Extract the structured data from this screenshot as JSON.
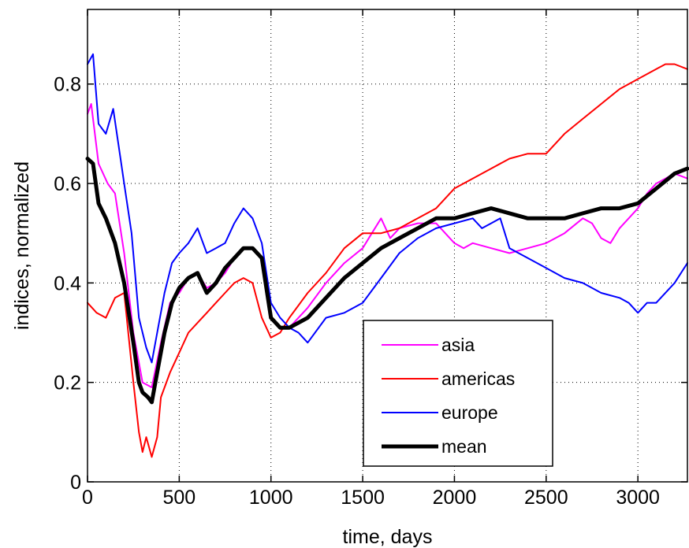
{
  "chart_data": {
    "type": "line",
    "title": "",
    "xlabel": "time, days",
    "ylabel": "indices, normalized",
    "xlim": [
      0,
      3270
    ],
    "ylim": [
      0,
      0.95
    ],
    "xticks": [
      0,
      500,
      1000,
      1500,
      2000,
      2500,
      3000
    ],
    "yticks": [
      0,
      0.2,
      0.4,
      0.6,
      0.8
    ],
    "xtick_labels": [
      "0",
      "500",
      "1000",
      "1500",
      "2000",
      "2500",
      "3000"
    ],
    "ytick_labels": [
      "0",
      "0.2",
      "0.4",
      "0.6",
      "0.8"
    ],
    "grid": true,
    "legend_position": "bottom-right",
    "series": [
      {
        "name": "asia",
        "color": "#ff00ff",
        "width": 2,
        "x": [
          0,
          20,
          60,
          110,
          150,
          200,
          250,
          300,
          350,
          400,
          450,
          500,
          550,
          600,
          650,
          700,
          750,
          800,
          850,
          900,
          950,
          1000,
          1050,
          1100,
          1150,
          1200,
          1300,
          1400,
          1500,
          1550,
          1600,
          1650,
          1700,
          1800,
          1900,
          2000,
          2050,
          2100,
          2200,
          2300,
          2400,
          2500,
          2600,
          2700,
          2750,
          2800,
          2850,
          2900,
          2950,
          3000,
          3050,
          3100,
          3150,
          3200,
          3270
        ],
        "y": [
          0.74,
          0.76,
          0.64,
          0.6,
          0.58,
          0.46,
          0.3,
          0.2,
          0.19,
          0.28,
          0.36,
          0.38,
          0.41,
          0.42,
          0.39,
          0.4,
          0.42,
          0.45,
          0.47,
          0.47,
          0.45,
          0.33,
          0.31,
          0.31,
          0.33,
          0.35,
          0.4,
          0.44,
          0.47,
          0.5,
          0.53,
          0.49,
          0.51,
          0.52,
          0.52,
          0.48,
          0.47,
          0.48,
          0.47,
          0.46,
          0.47,
          0.48,
          0.5,
          0.53,
          0.52,
          0.49,
          0.48,
          0.51,
          0.53,
          0.55,
          0.58,
          0.6,
          0.61,
          0.62,
          0.61
        ]
      },
      {
        "name": "americas",
        "color": "#ff0000",
        "width": 2,
        "x": [
          0,
          50,
          100,
          150,
          200,
          250,
          280,
          300,
          320,
          350,
          380,
          400,
          450,
          500,
          550,
          600,
          650,
          700,
          750,
          800,
          850,
          900,
          950,
          1000,
          1050,
          1100,
          1200,
          1300,
          1400,
          1500,
          1600,
          1700,
          1800,
          1900,
          2000,
          2100,
          2200,
          2300,
          2400,
          2500,
          2600,
          2700,
          2800,
          2900,
          3000,
          3100,
          3150,
          3200,
          3270
        ],
        "y": [
          0.36,
          0.34,
          0.33,
          0.37,
          0.38,
          0.2,
          0.1,
          0.06,
          0.09,
          0.05,
          0.09,
          0.17,
          0.22,
          0.26,
          0.3,
          0.32,
          0.34,
          0.36,
          0.38,
          0.4,
          0.41,
          0.4,
          0.33,
          0.29,
          0.3,
          0.33,
          0.38,
          0.42,
          0.47,
          0.5,
          0.5,
          0.51,
          0.53,
          0.55,
          0.59,
          0.61,
          0.63,
          0.65,
          0.66,
          0.66,
          0.7,
          0.73,
          0.76,
          0.79,
          0.81,
          0.83,
          0.84,
          0.84,
          0.83
        ]
      },
      {
        "name": "europe",
        "color": "#0000ff",
        "width": 2,
        "x": [
          0,
          30,
          60,
          100,
          140,
          180,
          200,
          240,
          280,
          320,
          350,
          380,
          420,
          460,
          500,
          550,
          600,
          650,
          700,
          750,
          800,
          850,
          900,
          950,
          1000,
          1050,
          1100,
          1150,
          1200,
          1300,
          1400,
          1500,
          1600,
          1700,
          1800,
          1900,
          2000,
          2100,
          2150,
          2200,
          2250,
          2300,
          2400,
          2500,
          2600,
          2700,
          2800,
          2900,
          2950,
          3000,
          3050,
          3100,
          3200,
          3270
        ],
        "y": [
          0.84,
          0.86,
          0.72,
          0.7,
          0.75,
          0.65,
          0.6,
          0.5,
          0.33,
          0.27,
          0.24,
          0.3,
          0.38,
          0.44,
          0.46,
          0.48,
          0.51,
          0.46,
          0.47,
          0.48,
          0.52,
          0.55,
          0.53,
          0.48,
          0.36,
          0.33,
          0.31,
          0.3,
          0.28,
          0.33,
          0.34,
          0.36,
          0.41,
          0.46,
          0.49,
          0.51,
          0.52,
          0.53,
          0.51,
          0.52,
          0.53,
          0.47,
          0.45,
          0.43,
          0.41,
          0.4,
          0.38,
          0.37,
          0.36,
          0.34,
          0.36,
          0.36,
          0.4,
          0.44
        ]
      },
      {
        "name": "mean",
        "color": "#000000",
        "width": 5,
        "x": [
          0,
          30,
          60,
          100,
          150,
          200,
          250,
          280,
          300,
          330,
          350,
          380,
          420,
          460,
          500,
          550,
          600,
          650,
          700,
          750,
          800,
          850,
          900,
          950,
          1000,
          1050,
          1100,
          1150,
          1200,
          1300,
          1400,
          1500,
          1600,
          1700,
          1800,
          1900,
          2000,
          2100,
          2200,
          2300,
          2400,
          2500,
          2600,
          2700,
          2800,
          2900,
          3000,
          3100,
          3200,
          3270
        ],
        "y": [
          0.65,
          0.64,
          0.56,
          0.53,
          0.48,
          0.4,
          0.28,
          0.2,
          0.18,
          0.17,
          0.16,
          0.22,
          0.3,
          0.36,
          0.39,
          0.41,
          0.42,
          0.38,
          0.4,
          0.43,
          0.45,
          0.47,
          0.47,
          0.45,
          0.33,
          0.31,
          0.31,
          0.32,
          0.33,
          0.37,
          0.41,
          0.44,
          0.47,
          0.49,
          0.51,
          0.53,
          0.53,
          0.54,
          0.55,
          0.54,
          0.53,
          0.53,
          0.53,
          0.54,
          0.55,
          0.55,
          0.56,
          0.59,
          0.62,
          0.63
        ]
      }
    ]
  }
}
